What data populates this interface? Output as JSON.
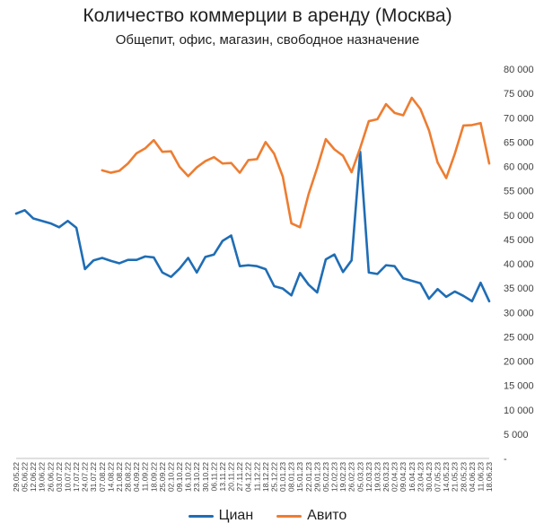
{
  "chart_data": {
    "type": "line",
    "title": "Количество коммерции в аренду (Москва)",
    "subtitle": "Общепит, офис, магазин, свободное назначение",
    "xlabel": "",
    "ylabel": "",
    "ylim": [
      0,
      80000
    ],
    "ytick_step": 5000,
    "yticks_labels": [
      "-",
      "5 000",
      "10 000",
      "15 000",
      "20 000",
      "25 000",
      "30 000",
      "35 000",
      "40 000",
      "45 000",
      "50 000",
      "55 000",
      "60 000",
      "65 000",
      "70 000",
      "75 000",
      "80 000"
    ],
    "y_axis_position": "right",
    "grid": false,
    "legend_position": "bottom",
    "categories": [
      "29.05.22",
      "05.06.22",
      "12.06.22",
      "19.06.22",
      "26.06.22",
      "03.07.22",
      "10.07.22",
      "17.07.22",
      "24.07.22",
      "31.07.22",
      "07.08.22",
      "14.08.22",
      "21.08.22",
      "28.08.22",
      "04.09.22",
      "11.09.22",
      "18.09.22",
      "25.09.22",
      "02.10.22",
      "09.10.22",
      "16.10.22",
      "23.10.22",
      "30.10.22",
      "06.11.22",
      "13.11.22",
      "20.11.22",
      "27.11.22",
      "04.12.22",
      "11.12.22",
      "18.12.22",
      "25.12.22",
      "01.01.23",
      "08.01.23",
      "15.01.23",
      "22.01.23",
      "29.01.23",
      "05.02.23",
      "12.02.23",
      "19.02.23",
      "26.02.23",
      "05.03.23",
      "12.03.23",
      "19.03.23",
      "26.03.23",
      "02.04.23",
      "09.04.23",
      "16.04.23",
      "23.04.23",
      "30.04.23",
      "07.05.23",
      "14.05.23",
      "21.05.23",
      "28.05.23",
      "04.06.23",
      "11.06.23",
      "18.06.23"
    ],
    "series": [
      {
        "name": "Циан",
        "color": "#1f6db5",
        "values": [
          50300,
          51000,
          49300,
          48800,
          48300,
          47500,
          48800,
          47400,
          38900,
          40700,
          41200,
          40600,
          40100,
          40800,
          40800,
          41500,
          41300,
          38200,
          37300,
          39000,
          41200,
          38200,
          41400,
          41900,
          44700,
          45800,
          39500,
          39700,
          39500,
          38900,
          35400,
          34900,
          33500,
          38100,
          35700,
          34100,
          40900,
          41900,
          38300,
          40700,
          63000,
          38200,
          37900,
          39700,
          39500,
          37000,
          36500,
          36000,
          32800,
          34800,
          33200,
          34300,
          33400,
          32300,
          36100,
          32300
        ]
      },
      {
        "name": "Авито",
        "color": "#ed7d31",
        "values": [
          null,
          null,
          null,
          null,
          null,
          null,
          null,
          null,
          null,
          null,
          59200,
          58700,
          59100,
          60600,
          62700,
          63700,
          65400,
          63000,
          63100,
          59900,
          58000,
          59800,
          61100,
          61900,
          60600,
          60700,
          58700,
          61300,
          61500,
          65000,
          62600,
          57900,
          48300,
          47500,
          54300,
          59700,
          65600,
          63500,
          62200,
          58800,
          63800,
          69300,
          69700,
          72800,
          71000,
          70500,
          74100,
          71800,
          67400,
          60800,
          57600,
          62600,
          68400,
          68500,
          68900,
          60600
        ]
      }
    ]
  }
}
